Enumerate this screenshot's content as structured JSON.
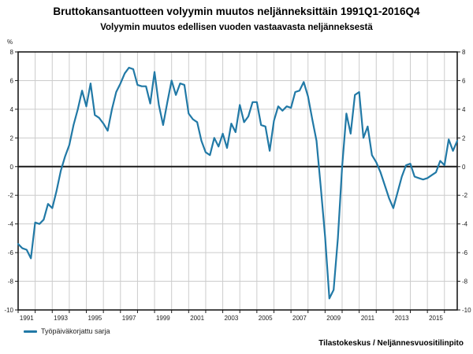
{
  "title": "Bruttokansantuotteen volyymin muutos neljänneksittäin 1991Q1-2016Q4",
  "subtitle": "Volyymin muutos edellisen vuoden vastaavasta neljänneksestä",
  "source": "Tilastokeskus / Neljännesvuositilinpito",
  "legend": [
    {
      "label": "Työpäiväkorjattu sarja",
      "color": "#2179a6"
    }
  ],
  "chart_data": {
    "type": "line",
    "title": "Bruttokansantuotteen volyymin muutos neljänneksittäin 1991Q1-2016Q4",
    "subtitle": "Volyymin muutos edellisen vuoden vastaavasta neljänneksestä",
    "ylabel": "%",
    "xlabel": "",
    "ylim": [
      -10,
      8
    ],
    "y_ticks": [
      8,
      6,
      4,
      2,
      0,
      -2,
      -4,
      -6,
      -8,
      -10
    ],
    "x_start_year": 1991,
    "x_end_label": "2016Q4",
    "x_tick_label_years": [
      "1991",
      "1993",
      "1995",
      "1997",
      "1999",
      "2001",
      "2003",
      "2005",
      "2007",
      "2009",
      "2011",
      "2013",
      "2015"
    ],
    "grid": true,
    "zero_line": true,
    "grid_color": "#cccccc",
    "axis_color": "#1a1a1a",
    "tick_label_color": "#222222",
    "legend_position": "bottom-left",
    "series": [
      {
        "name": "Työpäiväkorjattu sarja",
        "color": "#2179a6",
        "frequency": "quarterly",
        "start": "1991Q1",
        "end": "2016Q4",
        "values": [
          -5.4,
          -5.7,
          -5.8,
          -6.4,
          -3.9,
          -4.0,
          -3.7,
          -2.6,
          -2.9,
          -1.7,
          -0.3,
          0.7,
          1.5,
          2.9,
          4.0,
          5.3,
          4.2,
          5.8,
          3.6,
          3.4,
          3.0,
          2.5,
          4.0,
          5.2,
          5.8,
          6.5,
          6.9,
          6.8,
          5.7,
          5.6,
          5.6,
          4.4,
          6.6,
          4.3,
          2.9,
          4.5,
          6.0,
          5.0,
          5.8,
          5.7,
          3.7,
          3.3,
          3.1,
          1.8,
          1.0,
          0.8,
          2.0,
          1.4,
          2.3,
          1.3,
          3.0,
          2.4,
          4.3,
          3.1,
          3.5,
          4.5,
          4.5,
          2.9,
          2.8,
          1.1,
          3.2,
          4.2,
          3.9,
          4.2,
          4.1,
          5.2,
          5.3,
          5.9,
          4.9,
          3.3,
          1.8,
          -1.5,
          -4.9,
          -9.2,
          -8.6,
          -5.0,
          0.0,
          3.7,
          2.3,
          5.0,
          5.2,
          2.0,
          2.8,
          0.8,
          0.3,
          -0.4,
          -1.3,
          -2.2,
          -2.9,
          -1.8,
          -0.7,
          0.1,
          0.2,
          -0.7,
          -0.8,
          -0.9,
          -0.8,
          -0.6,
          -0.4,
          0.4,
          0.1,
          1.9,
          1.1,
          1.8
        ]
      }
    ]
  }
}
